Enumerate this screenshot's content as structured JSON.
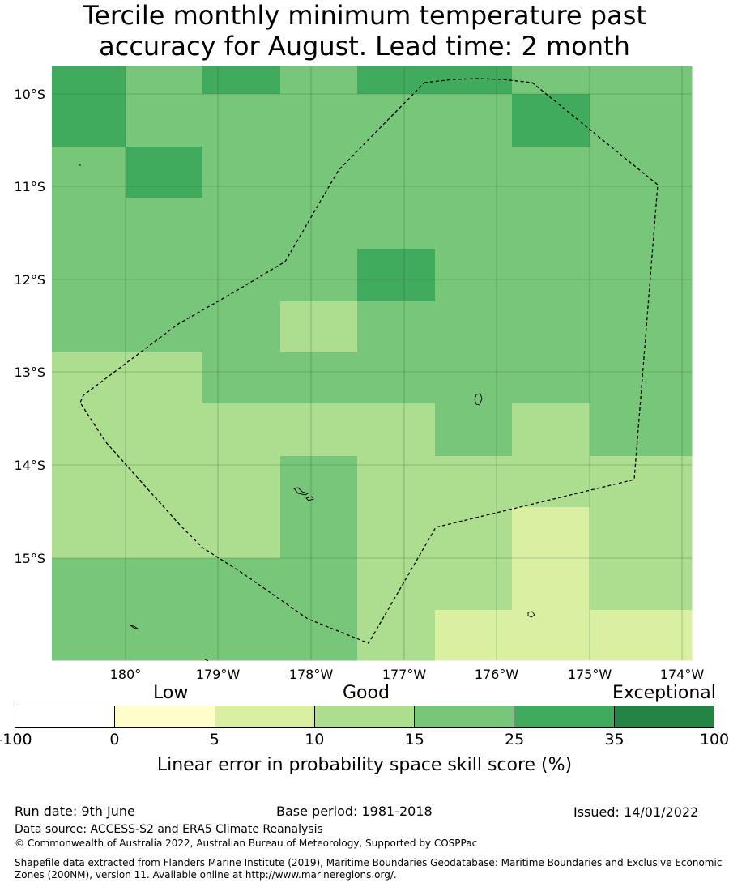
{
  "title": {
    "line1": "Tercile monthly minimum temperature past",
    "line2": "accuracy for August. Lead time: 2 month"
  },
  "map": {
    "lat_labels": [
      "10°S",
      "11°S",
      "12°S",
      "13°S",
      "14°S",
      "15°S"
    ],
    "lon_labels": [
      "180°",
      "179°W",
      "178°W",
      "177°W",
      "176°W",
      "175°W",
      "174°W"
    ],
    "boundary_style": "dashed",
    "grid_values_pct_bin": [
      [
        "25-35",
        "15-25",
        "25-35",
        "15-25",
        "25-35",
        "25-35",
        "15-25",
        "15-25"
      ],
      [
        "25-35",
        "15-25",
        "15-25",
        "15-25",
        "15-25",
        "15-25",
        "25-35",
        "15-25"
      ],
      [
        "15-25",
        "25-35",
        "15-25",
        "15-25",
        "15-25",
        "15-25",
        "15-25",
        "15-25"
      ],
      [
        "15-25",
        "15-25",
        "15-25",
        "15-25",
        "15-25",
        "15-25",
        "15-25",
        "15-25"
      ],
      [
        "15-25",
        "15-25",
        "15-25",
        "15-25",
        "25-35",
        "15-25",
        "15-25",
        "15-25"
      ],
      [
        "15-25",
        "15-25",
        "15-25",
        "10-15",
        "15-25",
        "15-25",
        "15-25",
        "15-25"
      ],
      [
        "10-15",
        "10-15",
        "15-25",
        "15-25",
        "15-25",
        "15-25",
        "15-25",
        "15-25"
      ],
      [
        "10-15",
        "10-15",
        "10-15",
        "10-15",
        "10-15",
        "15-25",
        "10-15",
        "15-25"
      ],
      [
        "10-15",
        "10-15",
        "10-15",
        "15-25",
        "10-15",
        "10-15",
        "10-15",
        "10-15"
      ],
      [
        "10-15",
        "10-15",
        "10-15",
        "15-25",
        "10-15",
        "10-15",
        "5-10",
        "10-15"
      ],
      [
        "15-25",
        "15-25",
        "15-25",
        "15-25",
        "10-15",
        "10-15",
        "5-10",
        "10-15"
      ],
      [
        "15-25",
        "15-25",
        "15-25",
        "15-25",
        "10-15",
        "5-10",
        "5-10",
        "5-10"
      ]
    ]
  },
  "legend": {
    "categories": [
      "Low",
      "Good",
      "Exceptional"
    ],
    "ticks": [
      "-100",
      "0",
      "5",
      "10",
      "15",
      "25",
      "35",
      "100"
    ],
    "colors": [
      "#ffffff",
      "#ffffcc",
      "#d9f0a3",
      "#addd8e",
      "#78c679",
      "#41ab5d",
      "#238443"
    ],
    "label": "Linear error in probability space skill score (%)"
  },
  "footer": {
    "run_date": "Run date: 9th June",
    "base_period": "Base period: 1981-2018",
    "issued": "Issued: 14/01/2022",
    "data_source": "Data source: ACCESS-S2 and ERA5 Climate Reanalysis",
    "copyright": "© Commonwealth of Australia 2022, Australian Bureau of Meteorology, Supported by COSPPac",
    "shapefile": "Shapefile data extracted from Flanders Marine Institute (2019), Maritime Boundaries Geodatabase: Maritime Boundaries and Exclusive Economic Zones (200NM), version 11. Available online at http://www.marineregions.org/."
  }
}
